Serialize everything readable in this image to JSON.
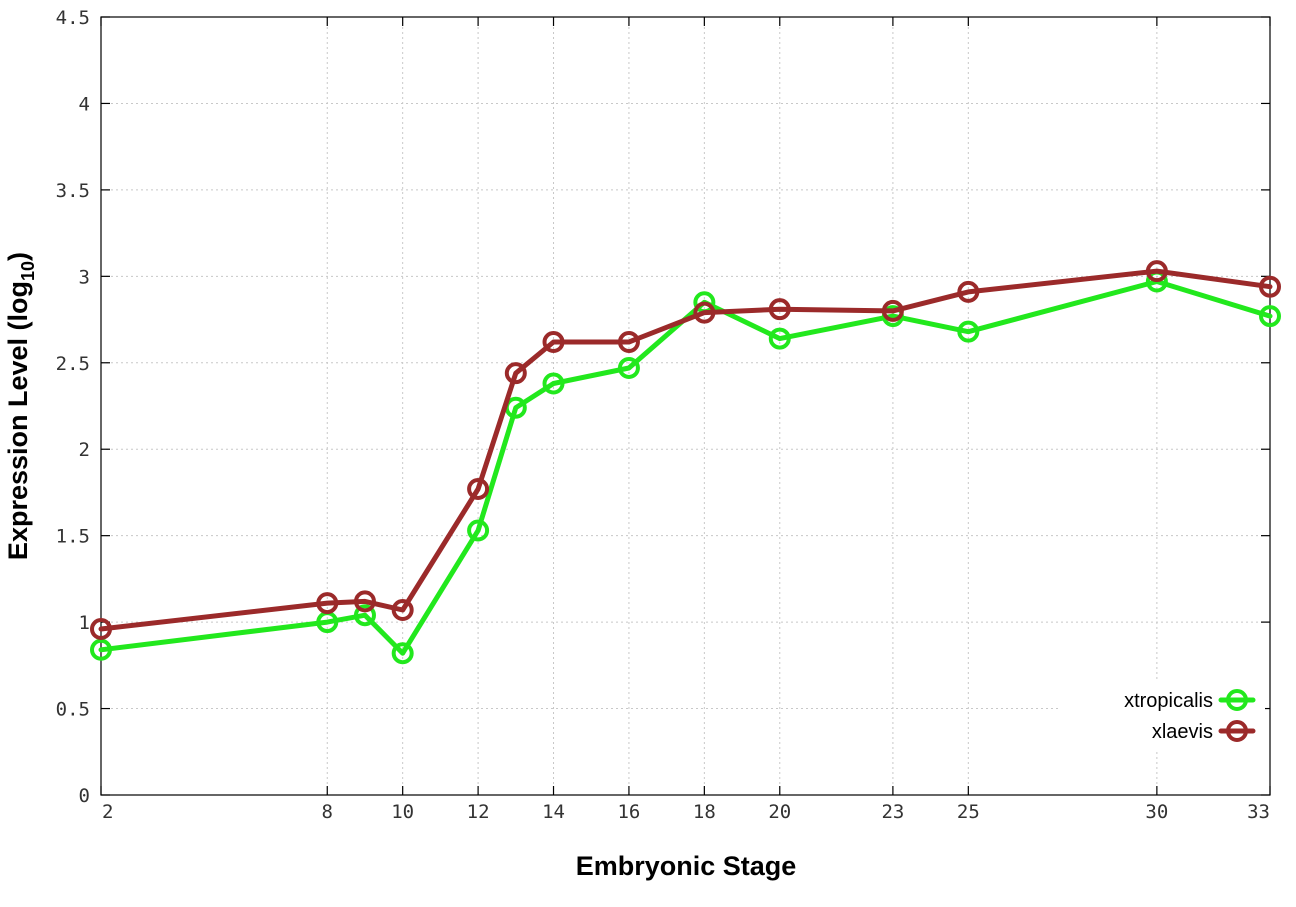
{
  "chart_data": {
    "type": "line",
    "xlabel": "Embryonic Stage",
    "ylabel": "Expression Level (log",
    "ylabel_sub": "10",
    "ylabel_suffix": ")",
    "xlim": [
      2,
      33
    ],
    "ylim": [
      0,
      4.5
    ],
    "x_ticks": [
      2,
      8,
      10,
      12,
      14,
      16,
      18,
      20,
      23,
      25,
      30,
      33
    ],
    "y_ticks": [
      0,
      0.5,
      1,
      1.5,
      2,
      2.5,
      3,
      3.5,
      4,
      4.5
    ],
    "y_tick_labels": [
      "0",
      "0.5",
      "1",
      "1.5",
      "2",
      "2.5",
      "3",
      "3.5",
      "4",
      "4.5"
    ],
    "grid": true,
    "legend_position": "bottom-right",
    "series": [
      {
        "name": "xtropicalis",
        "color": "#22e81d",
        "x": [
          2,
          8,
          9,
          10,
          12,
          13,
          14,
          16,
          18,
          20,
          23,
          25,
          30,
          33
        ],
        "values": [
          0.84,
          1.0,
          1.04,
          0.82,
          1.53,
          2.24,
          2.38,
          2.47,
          2.85,
          2.64,
          2.77,
          2.68,
          2.97,
          2.77
        ]
      },
      {
        "name": "xlaevis",
        "color": "#9b2a2a",
        "x": [
          2,
          8,
          9,
          10,
          12,
          13,
          14,
          16,
          18,
          20,
          23,
          25,
          30,
          33
        ],
        "values": [
          0.96,
          1.11,
          1.12,
          1.07,
          1.77,
          2.44,
          2.62,
          2.62,
          2.79,
          2.81,
          2.8,
          2.91,
          3.03,
          2.94
        ]
      }
    ]
  }
}
